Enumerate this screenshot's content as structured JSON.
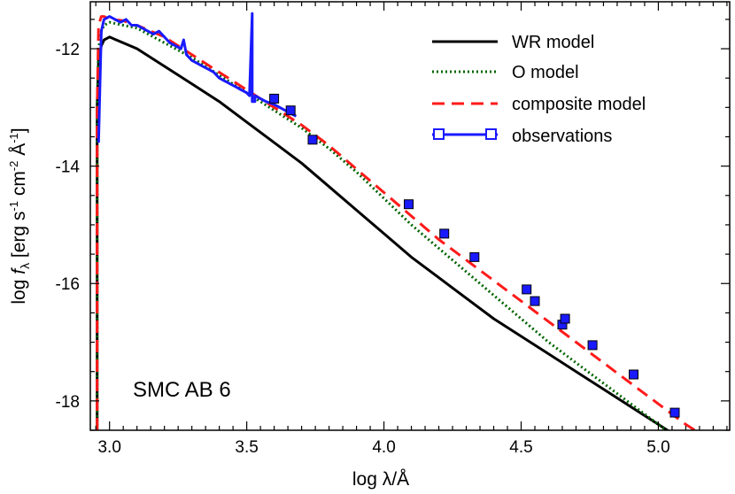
{
  "chart_data": {
    "type": "line",
    "annotation": "SMC AB 6",
    "xlabel": "log λ/Å",
    "ylabel_parts": {
      "main": "log ",
      "f": "f",
      "lambda": "λ",
      "units_open": " [erg s",
      "exp1": "-1",
      "cm": " cm",
      "exp2": "-2",
      "angstrom": " Å",
      "exp3": "-1",
      "units_close": "]"
    },
    "xlim": [
      2.93,
      5.26
    ],
    "ylim": [
      -18.5,
      -11.2
    ],
    "x_ticks": [
      {
        "value": 3.0,
        "label": "3.0"
      },
      {
        "value": 3.5,
        "label": "3.5"
      },
      {
        "value": 4.0,
        "label": "4.0"
      },
      {
        "value": 4.5,
        "label": "4.5"
      },
      {
        "value": 5.0,
        "label": "5.0"
      }
    ],
    "y_ticks": [
      {
        "value": -12,
        "label": "-12"
      },
      {
        "value": -14,
        "label": "-14"
      },
      {
        "value": -16,
        "label": "-16"
      },
      {
        "value": -18,
        "label": "-18"
      }
    ],
    "legend_placement": "top-right",
    "grid": false,
    "series": [
      {
        "name": "WR model",
        "color": "#000000",
        "style": "solid",
        "x": [
          2.955,
          2.955,
          2.96,
          2.97,
          2.98,
          3.0,
          3.1,
          3.2,
          3.3,
          3.4,
          3.5,
          3.6,
          3.7,
          3.8,
          3.9,
          4.0,
          4.1,
          4.2,
          4.3,
          4.4,
          4.5,
          4.6,
          4.7,
          4.8,
          4.9,
          5.0,
          5.1
        ],
        "y": [
          -18.5,
          -13.0,
          -12.2,
          -11.95,
          -11.85,
          -11.8,
          -12.0,
          -12.3,
          -12.6,
          -12.9,
          -13.25,
          -13.6,
          -13.95,
          -14.35,
          -14.75,
          -15.15,
          -15.55,
          -15.9,
          -16.25,
          -16.6,
          -16.9,
          -17.2,
          -17.5,
          -17.8,
          -18.1,
          -18.4,
          -18.7
        ]
      },
      {
        "name": "O model",
        "color": "#006400",
        "style": "dotted",
        "x": [
          2.955,
          2.955,
          2.96,
          2.97,
          2.98,
          3.0,
          3.1,
          3.2,
          3.3,
          3.4,
          3.5,
          3.6,
          3.7,
          3.8,
          3.9,
          4.0,
          4.1,
          4.2,
          4.3,
          4.4,
          4.5,
          4.6,
          4.7,
          4.8,
          4.9,
          5.0,
          5.1
        ],
        "y": [
          -18.5,
          -13.0,
          -12.0,
          -11.7,
          -11.6,
          -11.55,
          -11.65,
          -11.9,
          -12.15,
          -12.45,
          -12.75,
          -13.05,
          -13.35,
          -13.7,
          -14.1,
          -14.55,
          -15.0,
          -15.4,
          -15.8,
          -16.2,
          -16.6,
          -17.0,
          -17.35,
          -17.7,
          -18.05,
          -18.4,
          -18.75
        ]
      },
      {
        "name": "composite model",
        "color": "#ff1a1a",
        "style": "dashed",
        "x": [
          2.955,
          2.955,
          2.96,
          2.97,
          2.98,
          3.0,
          3.05,
          3.09,
          3.1,
          3.2,
          3.3,
          3.4,
          3.5,
          3.6,
          3.7,
          3.8,
          3.9,
          4.0,
          4.1,
          4.2,
          4.3,
          4.4,
          4.5,
          4.6,
          4.7,
          4.8,
          4.9,
          5.0,
          5.1,
          5.15
        ],
        "y": [
          -18.5,
          -13.0,
          -11.6,
          -11.45,
          -11.45,
          -11.5,
          -11.52,
          -11.6,
          -11.6,
          -11.8,
          -12.1,
          -12.4,
          -12.7,
          -13.0,
          -13.3,
          -13.65,
          -14.05,
          -14.45,
          -14.85,
          -15.25,
          -15.6,
          -15.95,
          -16.3,
          -16.65,
          -17.0,
          -17.35,
          -17.7,
          -18.05,
          -18.4,
          -18.55
        ]
      },
      {
        "name": "observations",
        "color": "#1a1aff",
        "style": "solid-markers",
        "spectrum": {
          "x": [
            2.96,
            2.97,
            2.98,
            3.0,
            3.02,
            3.04,
            3.06,
            3.08,
            3.1,
            3.12,
            3.14,
            3.16,
            3.18,
            3.2,
            3.22,
            3.24,
            3.26,
            3.27,
            3.28,
            3.3,
            3.32,
            3.34,
            3.36,
            3.38,
            3.4,
            3.42,
            3.44,
            3.46,
            3.48,
            3.5,
            3.51,
            3.52,
            3.52,
            3.53,
            3.53,
            3.55,
            3.57,
            3.6,
            3.62,
            3.64,
            3.66,
            3.68
          ],
          "y": [
            -13.6,
            -11.7,
            -11.5,
            -11.45,
            -11.5,
            -11.55,
            -11.5,
            -11.6,
            -11.6,
            -11.65,
            -11.7,
            -11.75,
            -11.7,
            -11.8,
            -11.9,
            -11.95,
            -12.0,
            -11.85,
            -12.1,
            -12.2,
            -12.25,
            -12.3,
            -12.35,
            -12.4,
            -12.5,
            -12.55,
            -12.6,
            -12.65,
            -12.7,
            -12.75,
            -12.8,
            -11.4,
            -12.9,
            -12.9,
            -12.8,
            -12.85,
            -12.9,
            -12.95,
            -13.0,
            -13.05,
            -13.1,
            -13.15
          ]
        },
        "photometry": {
          "x": [
            3.6,
            3.66,
            3.74,
            4.09,
            4.22,
            4.33,
            4.52,
            4.55,
            4.65,
            4.66,
            4.76,
            4.91,
            5.06
          ],
          "y": [
            -12.85,
            -13.05,
            -13.55,
            -14.65,
            -15.15,
            -15.55,
            -16.1,
            -16.3,
            -16.7,
            -16.6,
            -17.05,
            -17.55,
            -18.2
          ]
        }
      }
    ]
  }
}
